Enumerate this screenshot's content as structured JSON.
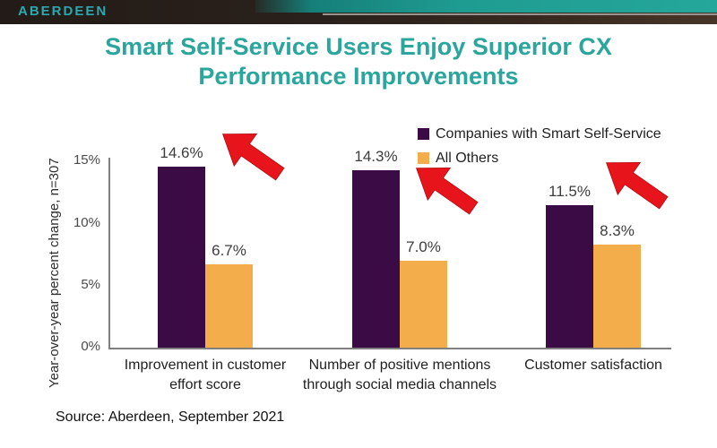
{
  "header": {
    "logo": "ABERDEEN"
  },
  "title_lines": [
    "Smart Self-Service Users Enjoy Superior CX",
    "Performance Improvements"
  ],
  "source": {
    "text": "Source: Aberdeen, September 2021"
  },
  "colors": {
    "title_teal": "#2aa69c",
    "logo_teal": "#2ea7ae",
    "header_dark": "#2a211c",
    "header_teal_band": "#1f9c92",
    "series_smart": "#3a0b44",
    "series_others": "#f3ae4b",
    "arrow_red": "#e8141b",
    "axis_gray": "#7f7f7f"
  },
  "chart_data": {
    "type": "bar",
    "title": "Smart Self-Service Users Enjoy Superior CX Performance Improvements",
    "categories": [
      "Improvement in customer effort score",
      "Number of positive mentions through social media channels",
      "Customer satisfaction"
    ],
    "category_lines": [
      [
        "Improvement in customer",
        "effort score"
      ],
      [
        "Number of positive mentions",
        "through social media channels"
      ],
      [
        "Customer satisfaction"
      ]
    ],
    "series": [
      {
        "name": "Companies with Smart Self-Service",
        "color": "#3a0b44",
        "values": [
          14.6,
          14.3,
          11.5
        ]
      },
      {
        "name": "All Others",
        "color": "#f3ae4b",
        "values": [
          6.7,
          7.0,
          8.3
        ]
      }
    ],
    "value_label_format": "0.0%",
    "xlabel": "",
    "ylabel": "Year-over-year percent change, n=307",
    "yticks": [
      {
        "label": "0%",
        "value": 0
      },
      {
        "label": "5%",
        "value": 5
      },
      {
        "label": "10%",
        "value": 10
      },
      {
        "label": "15%",
        "value": 15
      }
    ],
    "ylim": [
      0,
      15
    ],
    "grid": false,
    "legend_position": "top-right",
    "annotations": "Three red arrows pointing at the Companies with Smart Self-Service bars"
  }
}
